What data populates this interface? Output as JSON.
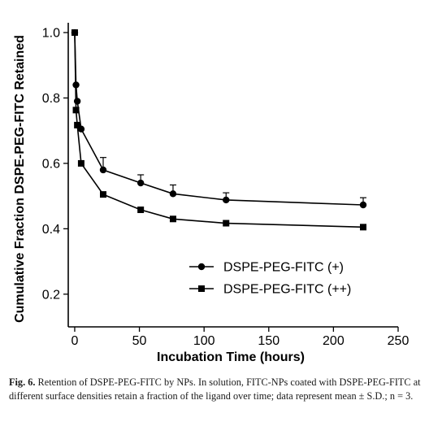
{
  "chart_data": {
    "type": "line",
    "xlabel": "Incubation Time (hours)",
    "ylabel": "Cumulative Fraction DSPE-PEG-FITC Retained",
    "xlim": [
      -5,
      250
    ],
    "ylim": [
      0.1,
      1.03
    ],
    "xticks": [
      0,
      50,
      100,
      150,
      200,
      250
    ],
    "yticks": [
      0.2,
      0.4,
      0.6,
      0.8,
      1.0
    ],
    "xtick_labels": [
      "0",
      "50",
      "100",
      "150",
      "200",
      "250"
    ],
    "ytick_labels": [
      "0.2",
      "0.4",
      "0.6",
      "0.8",
      "1.0"
    ],
    "grid": false,
    "legend_position": "bottom-center",
    "series": [
      {
        "name": "DSPE-PEG-FITC (+)",
        "marker": "circle",
        "x": [
          0,
          1,
          2,
          5,
          22,
          51,
          76,
          117,
          223
        ],
        "y": [
          1.0,
          0.84,
          0.79,
          0.705,
          0.58,
          0.54,
          0.507,
          0.488,
          0.473
        ],
        "error": [
          0,
          0,
          0,
          0,
          0.038,
          0.025,
          0.027,
          0.022,
          0.022
        ]
      },
      {
        "name": "DSPE-PEG-FITC (++)",
        "marker": "square",
        "x": [
          0,
          1,
          2,
          5,
          22,
          51,
          76,
          117,
          223
        ],
        "y": [
          1.0,
          0.763,
          0.717,
          0.6,
          0.505,
          0.458,
          0.43,
          0.417,
          0.405
        ],
        "error": [
          0,
          0,
          0,
          0,
          0,
          0,
          0,
          0,
          0
        ]
      }
    ]
  },
  "caption": {
    "label": "Fig. 6.",
    "text": "Retention of DSPE-PEG-FITC by NPs. In solution, FITC-NPs coated with DSPE-PEG-FITC at different surface densities retain a fraction of the ligand over time; data represent mean ± S.D.; n = 3."
  }
}
